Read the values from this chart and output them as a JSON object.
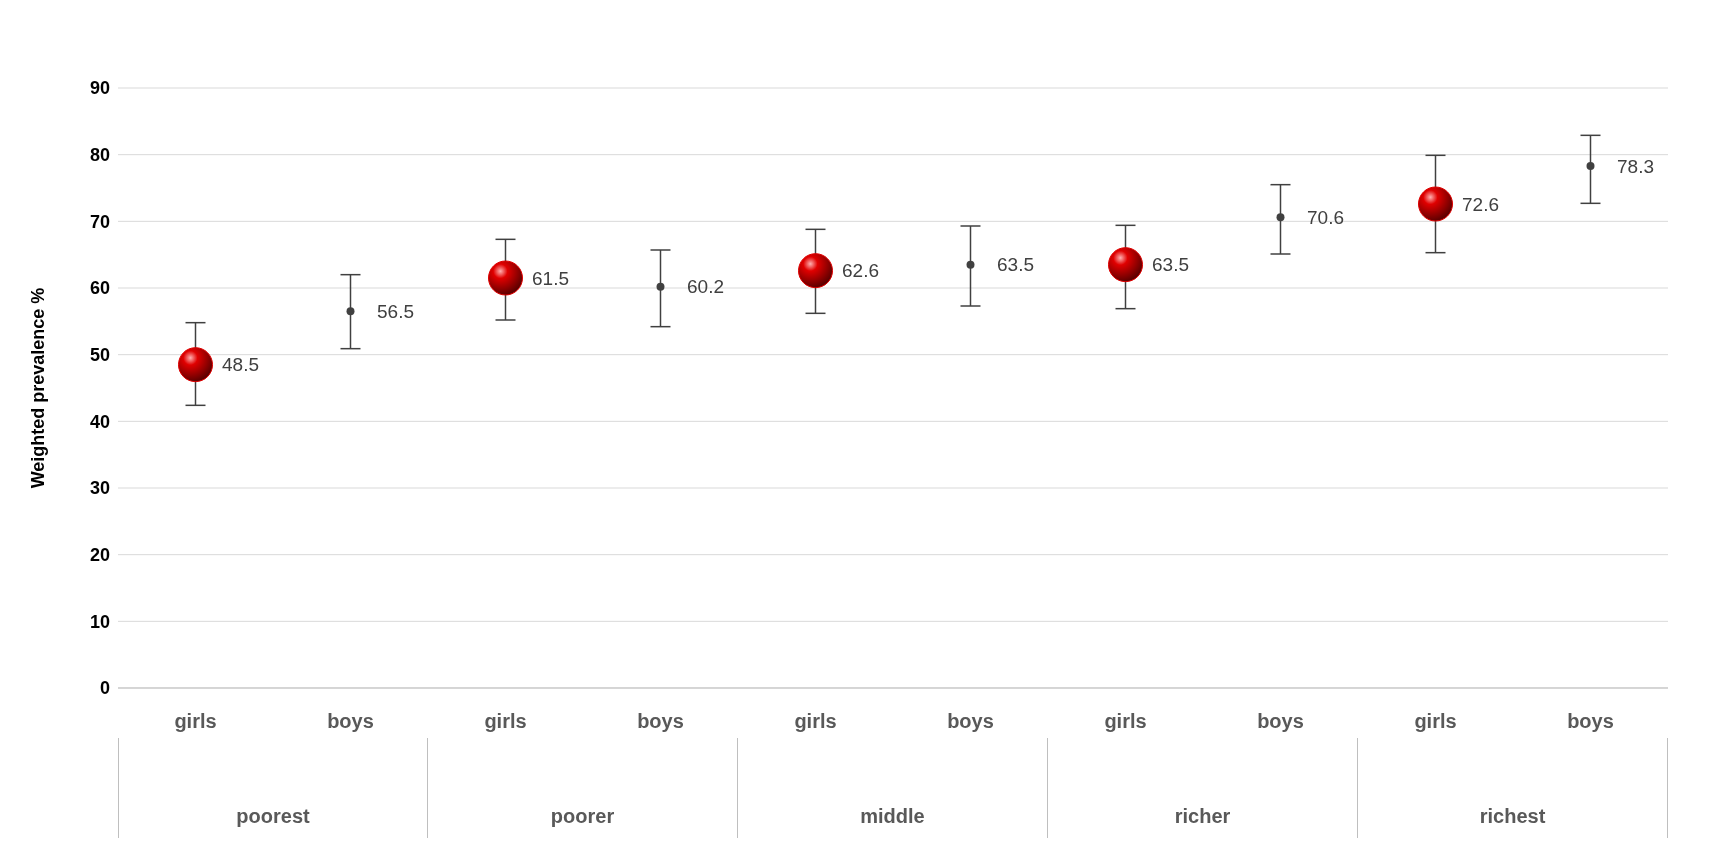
{
  "chart_data": {
    "type": "scatter",
    "ylabel": "Weighted prevalence %",
    "categories": [
      "girls",
      "boys",
      "girls",
      "boys",
      "girls",
      "boys",
      "girls",
      "boys",
      "girls",
      "boys"
    ],
    "series": [
      {
        "color": "#e00000",
        "marker": "circle",
        "values": [
          48.5,
          null,
          61.5,
          null,
          62.6,
          null,
          63.5,
          null,
          72.6,
          null
        ],
        "errors": [
          [
            42.4,
            54.8
          ],
          null,
          [
            55.2,
            67.3
          ],
          null,
          [
            56.2,
            68.8
          ],
          null,
          [
            56.9,
            69.4
          ],
          null,
          [
            65.3,
            79.9
          ],
          null
        ]
      },
      {
        "color": "#404040",
        "marker": "circle",
        "values": [
          null,
          56.5,
          null,
          60.2,
          null,
          63.5,
          null,
          70.6,
          null,
          78.3
        ],
        "errors": [
          null,
          [
            50.9,
            62.0
          ],
          null,
          [
            54.2,
            65.7
          ],
          null,
          [
            57.3,
            69.3
          ],
          null,
          [
            65.1,
            75.5
          ],
          null,
          [
            72.7,
            82.9
          ]
        ]
      }
    ],
    "annotations": [
      "poorest",
      "poorer",
      "middle",
      "richer",
      "richest"
    ],
    "ylim": [
      0,
      90
    ],
    "yticks": [
      0,
      10,
      20,
      30,
      40,
      50,
      60,
      70,
      80,
      90
    ],
    "grid": "y",
    "legend": false,
    "data_labels": true
  }
}
